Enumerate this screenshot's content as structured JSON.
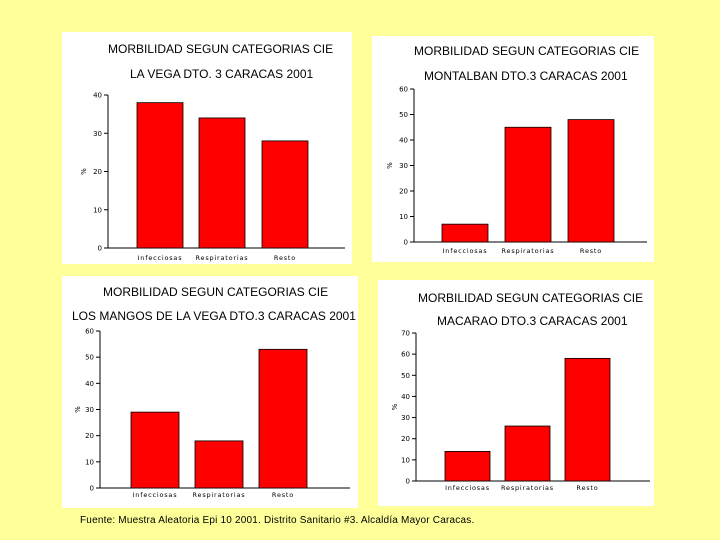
{
  "source_note": "Fuente: Muestra Aleatoria Epi 10 2001. Distrito Sanitario #3. Alcaldía Mayor Caracas.",
  "chart_data": [
    {
      "type": "bar",
      "title": "MORBILIDAD SEGUN CATEGORIAS CIE",
      "subtitle": "LA VEGA DTO. 3 CARACAS 2001",
      "ylabel": "%",
      "xlabel": "",
      "categories": [
        "Infecciosas",
        "Respiratorias",
        "Resto"
      ],
      "values": [
        38,
        34,
        28
      ],
      "ylim": [
        0,
        40
      ],
      "yticks": [
        0,
        10,
        20,
        30,
        40
      ]
    },
    {
      "type": "bar",
      "title": "MORBILIDAD SEGUN CATEGORIAS CIE",
      "subtitle": "MONTALBAN DTO.3 CARACAS 2001",
      "ylabel": "%",
      "xlabel": "",
      "categories": [
        "Infecciosas",
        "Respiratorias",
        "Resto"
      ],
      "values": [
        7,
        45,
        48
      ],
      "ylim": [
        0,
        60
      ],
      "yticks": [
        0,
        10,
        20,
        30,
        40,
        50,
        60
      ]
    },
    {
      "type": "bar",
      "title": "MORBILIDAD SEGUN CATEGORIAS CIE",
      "subtitle": "LOS MANGOS DE LA VEGA DTO.3 CARACAS 2001",
      "ylabel": "%",
      "xlabel": "",
      "categories": [
        "Infecciosas",
        "Respiratorias",
        "Resto"
      ],
      "values": [
        29,
        18,
        53
      ],
      "ylim": [
        0,
        60
      ],
      "yticks": [
        0,
        10,
        20,
        30,
        40,
        50,
        60
      ]
    },
    {
      "type": "bar",
      "title": "MORBILIDAD SEGUN CATEGORIAS CIE",
      "subtitle": "MACARAO DTO.3 CARACAS 2001",
      "ylabel": "%",
      "xlabel": "",
      "categories": [
        "Infecciosas",
        "Respiratorias",
        "Resto"
      ],
      "values": [
        14,
        26,
        58
      ],
      "ylim": [
        0,
        70
      ],
      "yticks": [
        0,
        10,
        20,
        30,
        40,
        50,
        60,
        70
      ]
    }
  ],
  "colors": {
    "bar": "#ff0000",
    "bar_edge": "#000000",
    "background": "#ffff99",
    "panel": "#ffffff"
  }
}
